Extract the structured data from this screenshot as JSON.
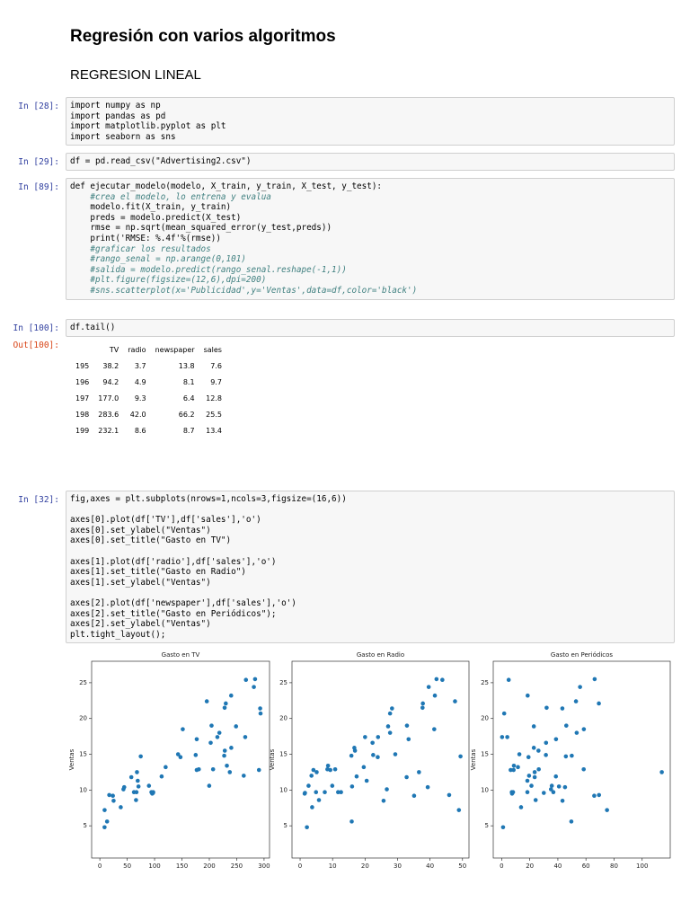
{
  "notebook": {
    "title": "Regresión con varios algoritmos",
    "subtitle": "REGRESION LINEAL",
    "cells": [
      {
        "prompt": "In [28]:",
        "blocks": [
          [
            "import numpy as np",
            "import pandas as pd",
            "import matplotlib.pyplot as plt",
            "import seaborn as sns"
          ]
        ]
      },
      {
        "prompt": "In [29]:",
        "blocks": [
          [
            "df = pd.read_csv(\"Advertising2.csv\")"
          ]
        ]
      },
      {
        "prompt": "In [89]:",
        "blocks": [
          [
            "def ejecutar_modelo(modelo, X_train, y_train, X_test, y_test):",
            "    #crea el modelo, lo entrena y evalua",
            "    modelo.fit(X_train, y_train)",
            "    preds = modelo.predict(X_test)",
            "    rmse = np.sqrt(mean_squared_error(y_test,preds))",
            "    print('RMSE: %.4f'%(rmse))",
            "    #graficar los resultados",
            "    #rango_senal = np.arange(0,101)",
            "    #salida = modelo.predict(rango_senal.reshape(-1,1))",
            "    #plt.figure(figsize=(12,6),dpi=200)",
            "    #sns.scatterplot(x='Publicidad',y='Ventas',data=df,color='black')"
          ]
        ]
      },
      {
        "prompt": "In [100]:",
        "blocks": [
          [
            "df.tail()"
          ]
        ]
      },
      {
        "prompt": "In [32]:",
        "blocks": [
          [
            "fig,axes = plt.subplots(nrows=1,ncols=3,figsize=(16,6))"
          ],
          [
            "axes[0].plot(df['TV'],df['sales'],'o')",
            "axes[0].set_ylabel(\"Ventas\")",
            "axes[0].set_title(\"Gasto en TV\")"
          ],
          [
            "axes[1].plot(df['radio'],df['sales'],'o')",
            "axes[1].set_title(\"Gasto en Radio\")",
            "axes[1].set_ylabel(\"Ventas\")"
          ],
          [
            "axes[2].plot(df['newspaper'],df['sales'],'o')",
            "axes[2].set_title(\"Gasto en Periódicos\");",
            "axes[2].set_ylabel(\"Ventas\")",
            "plt.tight_layout();"
          ]
        ]
      }
    ],
    "output": {
      "prompt": "Out[100]:",
      "columns": [
        "TV",
        "radio",
        "newspaper",
        "sales"
      ],
      "index": [
        "195",
        "196",
        "197",
        "198",
        "199"
      ],
      "rows": [
        [
          "38.2",
          "3.7",
          "13.8",
          "7.6"
        ],
        [
          "94.2",
          "4.9",
          "8.1",
          "9.7"
        ],
        [
          "177.0",
          "9.3",
          "6.4",
          "12.8"
        ],
        [
          "283.6",
          "42.0",
          "66.2",
          "25.5"
        ],
        [
          "232.1",
          "8.6",
          "8.7",
          "13.4"
        ]
      ]
    }
  },
  "chart_data": [
    {
      "type": "scatter",
      "title": "Gasto en TV",
      "ylabel": "Ventas",
      "color": "#1f77b4",
      "x": [
        230.1,
        44.5,
        17.2,
        151.5,
        180.8,
        8.7,
        57.5,
        120.2,
        8.6,
        199.8,
        66.1,
        214.7,
        23.8,
        97.5,
        204.1,
        195.4,
        67.8,
        281.4,
        69.2,
        147.3,
        218.4,
        237.4,
        13.2,
        228.3,
        62.3,
        262.9,
        142.9,
        240.1,
        248.8,
        70.6,
        292.9,
        112.9,
        97.2,
        265.6,
        95.7,
        290.7,
        266.9,
        74.7,
        43.1,
        228,
        202.5,
        177,
        293.6,
        206.9,
        25.1,
        175.1,
        89.7,
        239.9,
        227.2,
        66.9,
        38.2,
        94.2,
        177,
        283.6,
        232.1
      ],
      "values": [
        22.1,
        10.4,
        9.3,
        18.5,
        12.9,
        7.2,
        11.8,
        13.2,
        4.8,
        10.6,
        8.6,
        17.4,
        9.2,
        9.7,
        19,
        22.4,
        12.5,
        24.4,
        11.3,
        14.6,
        18,
        12.5,
        5.6,
        15.5,
        9.7,
        12,
        15,
        15.9,
        18.9,
        10.5,
        21.4,
        11.9,
        9.6,
        17.4,
        9.5,
        12.8,
        25.4,
        14.7,
        10.1,
        21.5,
        16.6,
        17.1,
        20.7,
        12.9,
        8.5,
        14.9,
        10.6,
        23.2,
        14.8,
        9.7,
        7.6,
        9.7,
        12.8,
        25.5,
        13.4
      ],
      "xlim": [
        -15,
        310
      ],
      "ylim": [
        0.5,
        28
      ],
      "xticks": [
        0,
        50,
        100,
        150,
        200,
        250,
        300
      ],
      "yticks": [
        5,
        10,
        15,
        20,
        25
      ]
    },
    {
      "type": "scatter",
      "title": "Gasto en Radio",
      "ylabel": "Ventas",
      "color": "#1f77b4",
      "x": [
        37.8,
        39.3,
        45.9,
        41.3,
        10.8,
        48.9,
        32.8,
        19.6,
        2.1,
        2.6,
        5.8,
        24,
        35.1,
        7.6,
        32.9,
        47.7,
        36.6,
        39.6,
        20.5,
        23.9,
        27.7,
        5.1,
        15.9,
        16.9,
        12.6,
        3.5,
        29.3,
        16.7,
        27.1,
        16,
        28.3,
        17.4,
        1.5,
        20,
        1.4,
        4.1,
        43.8,
        49.4,
        26.7,
        37.7,
        22.3,
        33.4,
        27.7,
        8.4,
        25.7,
        22.5,
        9.9,
        41.5,
        15.8,
        11.7,
        3.7,
        4.9,
        9.3,
        42,
        8.6
      ],
      "values": [
        22.1,
        10.4,
        9.3,
        18.5,
        12.9,
        7.2,
        11.8,
        13.2,
        4.8,
        10.6,
        8.6,
        17.4,
        9.2,
        9.7,
        19,
        22.4,
        12.5,
        24.4,
        11.3,
        14.6,
        18,
        12.5,
        5.6,
        15.5,
        9.7,
        12,
        15,
        15.9,
        18.9,
        10.5,
        21.4,
        11.9,
        9.6,
        17.4,
        9.5,
        12.8,
        25.4,
        14.7,
        10.1,
        21.5,
        16.6,
        17.1,
        20.7,
        12.9,
        8.5,
        14.9,
        10.6,
        23.2,
        14.8,
        9.7,
        7.6,
        9.7,
        12.8,
        25.5,
        13.4
      ],
      "xlim": [
        -2.5,
        52
      ],
      "ylim": [
        0.5,
        28
      ],
      "xticks": [
        0,
        10,
        20,
        30,
        40,
        50
      ],
      "yticks": [
        5,
        10,
        15,
        20,
        25
      ]
    },
    {
      "type": "scatter",
      "title": "Gasto en Periódicos",
      "ylabel": "Ventas",
      "color": "#1f77b4",
      "x": [
        69.2,
        45.1,
        69.3,
        58.5,
        58.4,
        75,
        23.5,
        11.6,
        1,
        21.2,
        24.2,
        4,
        65.9,
        7.2,
        46,
        52.9,
        114,
        55.8,
        18.3,
        19.1,
        53.4,
        23.5,
        49.6,
        26.2,
        18.3,
        19.5,
        12.6,
        22.9,
        22.9,
        40.8,
        43.2,
        38.6,
        30,
        0.3,
        7.4,
        8.5,
        5,
        45.7,
        35.1,
        32,
        31.6,
        38.7,
        1.8,
        26.4,
        43.3,
        31.5,
        35.7,
        18.5,
        49.9,
        36.8,
        13.8,
        8.1,
        6.4,
        66.2,
        8.7
      ],
      "values": [
        22.1,
        10.4,
        9.3,
        18.5,
        12.9,
        7.2,
        11.8,
        13.2,
        4.8,
        10.6,
        8.6,
        17.4,
        9.2,
        9.7,
        19,
        22.4,
        12.5,
        24.4,
        11.3,
        14.6,
        18,
        12.5,
        5.6,
        15.5,
        9.7,
        12,
        15,
        15.9,
        18.9,
        10.5,
        21.4,
        11.9,
        9.6,
        17.4,
        9.5,
        12.8,
        25.4,
        14.7,
        10.1,
        21.5,
        16.6,
        17.1,
        20.7,
        12.9,
        8.5,
        14.9,
        10.6,
        23.2,
        14.8,
        9.7,
        7.6,
        9.7,
        12.8,
        25.5,
        13.4
      ],
      "xlim": [
        -6,
        120
      ],
      "ylim": [
        0.5,
        28
      ],
      "xticks": [
        0,
        20,
        40,
        60,
        80,
        100
      ],
      "yticks": [
        5,
        10,
        15,
        20,
        25
      ]
    }
  ]
}
